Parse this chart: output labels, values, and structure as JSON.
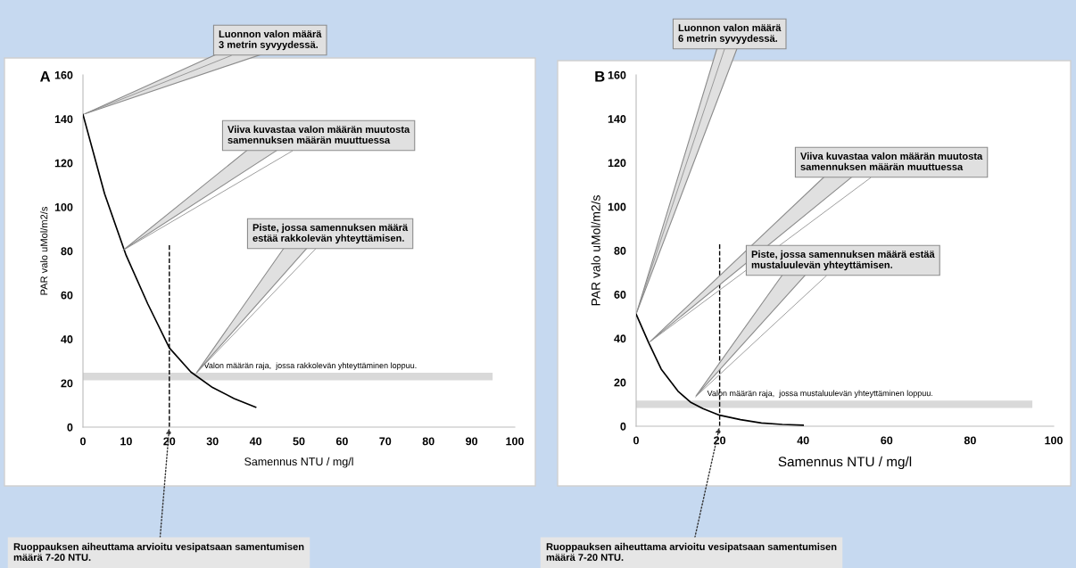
{
  "chart_data": [
    {
      "type": "line",
      "title": "A",
      "xlabel": "Samennus NTU / mg/l",
      "ylabel": "PAR valo uMol/m2/s",
      "xlim": [
        0,
        100
      ],
      "xticks": [
        0,
        10,
        20,
        30,
        40,
        50,
        60,
        70,
        80,
        90,
        100
      ],
      "ylim": [
        0,
        160
      ],
      "yticks": [
        0,
        20,
        40,
        60,
        80,
        100,
        120,
        140,
        160
      ],
      "grid": false,
      "legend": false,
      "marker": "none",
      "line_style": "solid",
      "series": [
        {
          "color": "#000000",
          "x": [
            0,
            5,
            10,
            15,
            20,
            25,
            30,
            35,
            40
          ],
          "values": [
            142,
            106,
            78,
            56,
            36,
            25,
            18,
            13,
            9
          ]
        }
      ],
      "ref_lines": [
        {
          "axis": "y",
          "value": 23,
          "label": "Valon määrän raja,  jossa rakkolevän yhteyttäminen loppuu.",
          "color": "#d9d9d9",
          "line_style": "solid"
        },
        {
          "axis": "x",
          "value": 20,
          "label": null,
          "color": "#000000",
          "line_style": "dashed"
        }
      ],
      "annotations": [
        {
          "text": "Luonnon valon määrä\n3 metrin syvyydessä.",
          "x": 0,
          "y": 142
        },
        {
          "text": "Viiva kuvastaa valon määrän muutosta\nsamennuksen määrän muuttuessa",
          "x": 9,
          "y": 80
        },
        {
          "text": "Piste, jossa samennuksen määrä\nestää rakkolevän yhteyttämisen.",
          "x": 26,
          "y": 24
        },
        {
          "text": "Ruoppauksen aiheuttama arvioitu vesipatsaan samentumisen\nmäärä 7-20 NTU.",
          "x": 20,
          "y": 0
        }
      ]
    },
    {
      "type": "line",
      "title": "B",
      "xlabel": "Samennus NTU / mg/l",
      "ylabel": "PAR valo uMol/m2/s",
      "xlim": [
        0,
        100
      ],
      "xticks": [
        0,
        20,
        40,
        60,
        80,
        100
      ],
      "ylim": [
        0,
        160
      ],
      "yticks": [
        0,
        20,
        40,
        60,
        80,
        100,
        120,
        140,
        160
      ],
      "grid": false,
      "legend": false,
      "marker": "none",
      "line_style": "solid",
      "series": [
        {
          "color": "#000000",
          "x": [
            0,
            3,
            6,
            10,
            13,
            16,
            20,
            25,
            30,
            35,
            40
          ],
          "values": [
            51,
            38,
            26,
            16,
            11,
            8,
            5,
            3,
            1.5,
            0.8,
            0.5
          ]
        }
      ],
      "ref_lines": [
        {
          "axis": "y",
          "value": 10,
          "label": "Valon määrän raja,  jossa mustaluulevän yhteyttäminen loppuu.",
          "color": "#d9d9d9",
          "line_style": "solid"
        },
        {
          "axis": "x",
          "value": 20,
          "label": null,
          "color": "#000000",
          "line_style": "dashed"
        }
      ],
      "annotations": [
        {
          "text": "Luonnon valon määrä\n6 metrin syvyydessä.",
          "x": 0,
          "y": 51
        },
        {
          "text": "Viiva kuvastaa valon määrän muutosta\nsamennuksen määrän muuttuessa",
          "x": 3,
          "y": 38
        },
        {
          "text": "Piste, jossa samennuksen määrä estää\nmustaluulevän yhteyttämisen.",
          "x": 14,
          "y": 13
        },
        {
          "text": "Ruoppauksen aiheuttama arvioitu vesipatsaan samentumisen\nmäärä 7-20 NTU.",
          "x": 20,
          "y": 0
        }
      ]
    }
  ]
}
